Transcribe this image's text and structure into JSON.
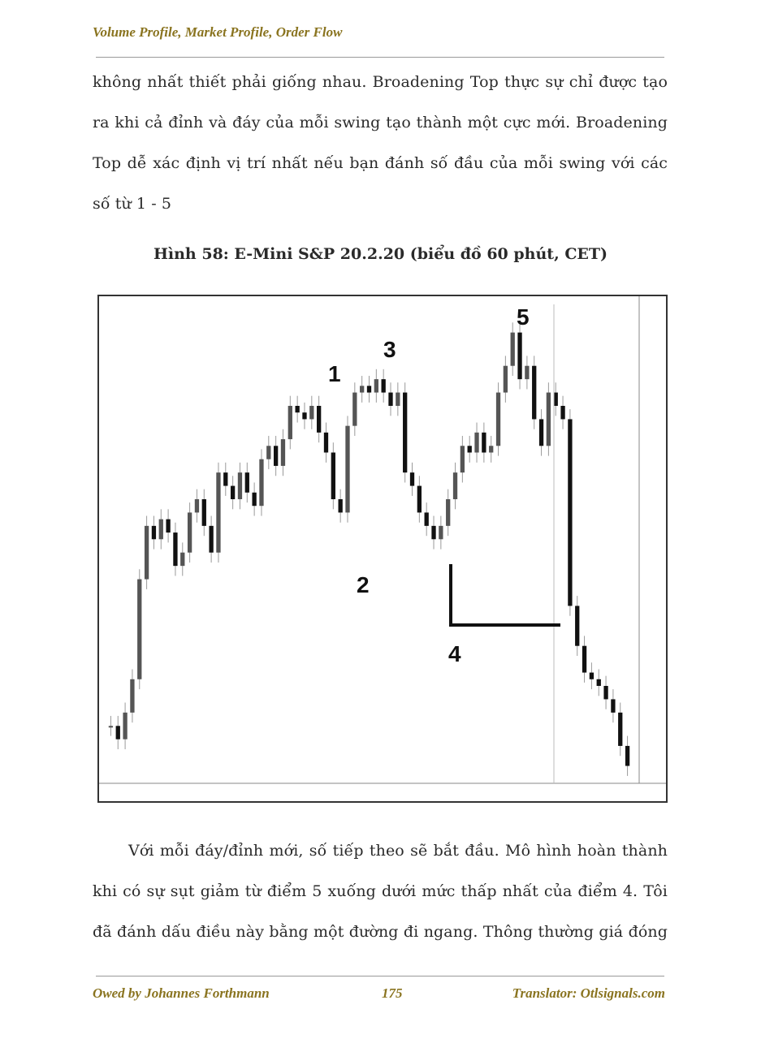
{
  "header": {
    "title": "Volume Profile, Market Profile, Order Flow"
  },
  "paragraph1": {
    "lines": [
      "không nhất thiết phải giống nhau. Broadening Top thực sự chỉ được tạo",
      "ra khi cả đỉnh và đáy của mỗi swing tạo thành một cực mới. Broadening",
      "Top dễ xác định vị trí nhất nếu bạn đánh số đầu của mỗi swing với các",
      "số từ 1 - 5"
    ]
  },
  "figure": {
    "caption": "Hình 58: E-Mini S&P 20.2.20 (biểu đồ 60 phút, CET)",
    "swing_labels": [
      "1",
      "2",
      "3",
      "4",
      "5"
    ]
  },
  "paragraph2": {
    "lines": [
      "Với mỗi đáy/đỉnh mới, số tiếp theo sẽ bắt đầu. Mô hình hoàn thành",
      "khi có sự sụt giảm từ điểm 5 xuống dưới mức thấp nhất của điểm 4. Tôi",
      "đã đánh dấu điều này bằng một đường đi ngang. Thông thường giá đóng"
    ]
  },
  "footer": {
    "left": "Owed by Johannes Forthmann",
    "page": "175",
    "right": "Translator: Otlsignals.com"
  },
  "colors": {
    "accent": "#8a7420",
    "rule": "#9a9a9a"
  },
  "chart_data": {
    "type": "line",
    "title": "",
    "series": [
      {
        "values": [
          3338,
          3336,
          3340,
          3345,
          3360,
          3368,
          3366,
          3369,
          3367,
          3362,
          3364,
          3370,
          3372,
          3368,
          3364,
          3376,
          3374,
          3372,
          3376,
          3373,
          3371,
          3378,
          3380,
          3377,
          3381,
          3386,
          3385,
          3384,
          3386,
          3382,
          3379,
          3372,
          3370,
          3383,
          3388,
          3389,
          3388,
          3390,
          3388,
          3386,
          3388,
          3376,
          3374,
          3370,
          3368,
          3366,
          3368,
          3372,
          3376,
          3380,
          3379,
          3382,
          3379,
          3380,
          3388,
          3392,
          3397,
          3390,
          3392,
          3384,
          3380,
          3388,
          3386,
          3384,
          3356,
          3350,
          3346,
          3345,
          3344,
          3342,
          3340,
          3335,
          3332
        ]
      }
    ],
    "ylim": [
      3330,
      3400
    ],
    "grid": false
  }
}
